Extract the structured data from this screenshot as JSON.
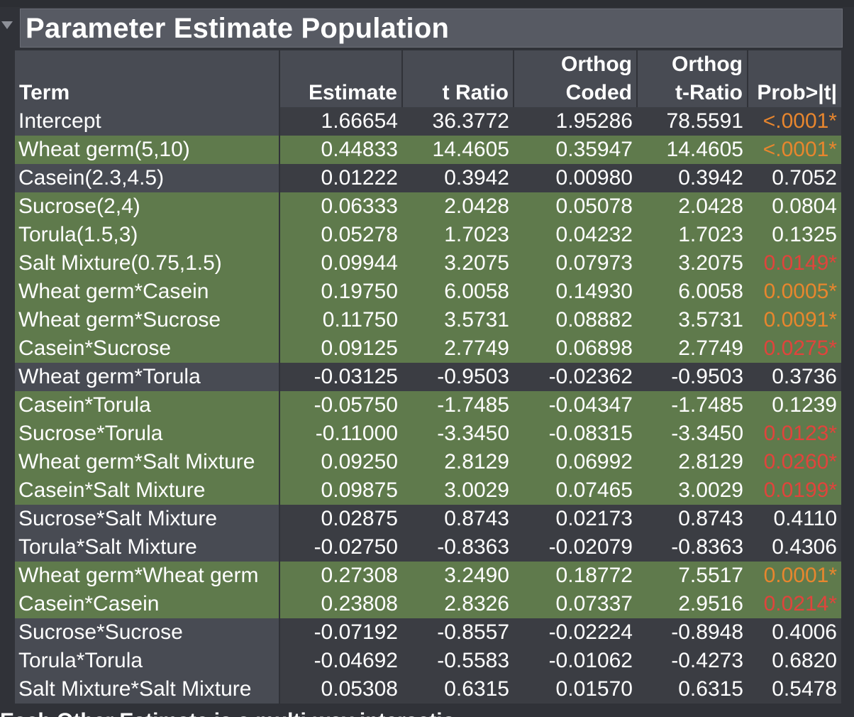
{
  "report": {
    "title": "Parameter Estimate Population",
    "partial_next_heading": "Each Other Estimate is a multi-way interaction"
  },
  "table": {
    "headers": [
      {
        "line1": "",
        "line2": "Term"
      },
      {
        "line1": "",
        "line2": "Estimate"
      },
      {
        "line1": "",
        "line2": "t Ratio"
      },
      {
        "line1": "Orthog",
        "line2": "Coded"
      },
      {
        "line1": "Orthog",
        "line2": "t-Ratio"
      },
      {
        "line1": "",
        "line2": "Prob>|t|"
      }
    ],
    "rows": [
      {
        "term": "Intercept",
        "estimate": "1.66654",
        "t_ratio": "36.3772",
        "orthog_coded": "1.95286",
        "orthog_t_ratio": "78.5591",
        "prob": "<.0001*",
        "highlight": false,
        "prob_color": "orange"
      },
      {
        "term": "Wheat germ(5,10)",
        "estimate": "0.44833",
        "t_ratio": "14.4605",
        "orthog_coded": "0.35947",
        "orthog_t_ratio": "14.4605",
        "prob": "<.0001*",
        "highlight": true,
        "prob_color": "orange"
      },
      {
        "term": "Casein(2.3,4.5)",
        "estimate": "0.01222",
        "t_ratio": "0.3942",
        "orthog_coded": "0.00980",
        "orthog_t_ratio": "0.3942",
        "prob": "0.7052",
        "highlight": false,
        "prob_color": "white"
      },
      {
        "term": "Sucrose(2,4)",
        "estimate": "0.06333",
        "t_ratio": "2.0428",
        "orthog_coded": "0.05078",
        "orthog_t_ratio": "2.0428",
        "prob": "0.0804",
        "highlight": true,
        "prob_color": "white"
      },
      {
        "term": "Torula(1.5,3)",
        "estimate": "0.05278",
        "t_ratio": "1.7023",
        "orthog_coded": "0.04232",
        "orthog_t_ratio": "1.7023",
        "prob": "0.1325",
        "highlight": true,
        "prob_color": "white"
      },
      {
        "term": "Salt Mixture(0.75,1.5)",
        "estimate": "0.09944",
        "t_ratio": "3.2075",
        "orthog_coded": "0.07973",
        "orthog_t_ratio": "3.2075",
        "prob": "0.0149*",
        "highlight": true,
        "prob_color": "red"
      },
      {
        "term": "Wheat germ*Casein",
        "estimate": "0.19750",
        "t_ratio": "6.0058",
        "orthog_coded": "0.14930",
        "orthog_t_ratio": "6.0058",
        "prob": "0.0005*",
        "highlight": true,
        "prob_color": "orange"
      },
      {
        "term": "Wheat germ*Sucrose",
        "estimate": "0.11750",
        "t_ratio": "3.5731",
        "orthog_coded": "0.08882",
        "orthog_t_ratio": "3.5731",
        "prob": "0.0091*",
        "highlight": true,
        "prob_color": "orange"
      },
      {
        "term": "Casein*Sucrose",
        "estimate": "0.09125",
        "t_ratio": "2.7749",
        "orthog_coded": "0.06898",
        "orthog_t_ratio": "2.7749",
        "prob": "0.0275*",
        "highlight": true,
        "prob_color": "red"
      },
      {
        "term": "Wheat germ*Torula",
        "estimate": "-0.03125",
        "t_ratio": "-0.9503",
        "orthog_coded": "-0.02362",
        "orthog_t_ratio": "-0.9503",
        "prob": "0.3736",
        "highlight": false,
        "prob_color": "white"
      },
      {
        "term": "Casein*Torula",
        "estimate": "-0.05750",
        "t_ratio": "-1.7485",
        "orthog_coded": "-0.04347",
        "orthog_t_ratio": "-1.7485",
        "prob": "0.1239",
        "highlight": true,
        "prob_color": "white"
      },
      {
        "term": "Sucrose*Torula",
        "estimate": "-0.11000",
        "t_ratio": "-3.3450",
        "orthog_coded": "-0.08315",
        "orthog_t_ratio": "-3.3450",
        "prob": "0.0123*",
        "highlight": true,
        "prob_color": "red"
      },
      {
        "term": "Wheat germ*Salt Mixture",
        "estimate": "0.09250",
        "t_ratio": "2.8129",
        "orthog_coded": "0.06992",
        "orthog_t_ratio": "2.8129",
        "prob": "0.0260*",
        "highlight": true,
        "prob_color": "red"
      },
      {
        "term": "Casein*Salt Mixture",
        "estimate": "0.09875",
        "t_ratio": "3.0029",
        "orthog_coded": "0.07465",
        "orthog_t_ratio": "3.0029",
        "prob": "0.0199*",
        "highlight": true,
        "prob_color": "red"
      },
      {
        "term": "Sucrose*Salt Mixture",
        "estimate": "0.02875",
        "t_ratio": "0.8743",
        "orthog_coded": "0.02173",
        "orthog_t_ratio": "0.8743",
        "prob": "0.4110",
        "highlight": false,
        "prob_color": "white"
      },
      {
        "term": "Torula*Salt Mixture",
        "estimate": "-0.02750",
        "t_ratio": "-0.8363",
        "orthog_coded": "-0.02079",
        "orthog_t_ratio": "-0.8363",
        "prob": "0.4306",
        "highlight": false,
        "prob_color": "white"
      },
      {
        "term": "Wheat germ*Wheat germ",
        "estimate": "0.27308",
        "t_ratio": "3.2490",
        "orthog_coded": "0.18772",
        "orthog_t_ratio": "7.5517",
        "prob": "0.0001*",
        "highlight": true,
        "prob_color": "orange"
      },
      {
        "term": "Casein*Casein",
        "estimate": "0.23808",
        "t_ratio": "2.8326",
        "orthog_coded": "0.07337",
        "orthog_t_ratio": "2.9516",
        "prob": "0.0214*",
        "highlight": true,
        "prob_color": "red"
      },
      {
        "term": "Sucrose*Sucrose",
        "estimate": "-0.07192",
        "t_ratio": "-0.8557",
        "orthog_coded": "-0.02224",
        "orthog_t_ratio": "-0.8948",
        "prob": "0.4006",
        "highlight": false,
        "prob_color": "white"
      },
      {
        "term": "Torula*Torula",
        "estimate": "-0.04692",
        "t_ratio": "-0.5583",
        "orthog_coded": "-0.01062",
        "orthog_t_ratio": "-0.4273",
        "prob": "0.6820",
        "highlight": false,
        "prob_color": "white"
      },
      {
        "term": "Salt Mixture*Salt Mixture",
        "estimate": "0.05308",
        "t_ratio": "0.6315",
        "orthog_coded": "0.01570",
        "orthog_t_ratio": "0.6315",
        "prob": "0.5478",
        "highlight": false,
        "prob_color": "white"
      }
    ]
  },
  "colors": {
    "background": "#303238",
    "title_bar": "#575a63",
    "header_bg": "#484b53",
    "row_dark": "#3b3d43",
    "row_highlight": "#5f7a4c",
    "prob_orange": "#e8862e",
    "prob_red": "#e0443c"
  },
  "icons": {
    "disclosure": "disclosure-triangle-down-icon"
  }
}
